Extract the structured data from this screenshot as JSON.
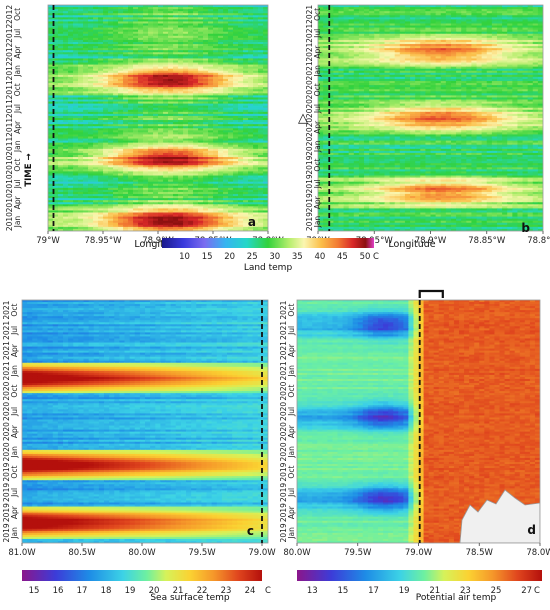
{
  "figure": {
    "time_arrow_label": "TIME →",
    "triangle_marker": "△"
  },
  "chart_data": [
    {
      "type": "heatmap",
      "panel": "a",
      "xlabel": "Longitude",
      "x_ticks": [
        "79°W",
        "78.95°W",
        "78.9°W",
        "78.85°W",
        "78.8°W"
      ],
      "x_tick_values": [
        -79.0,
        -78.95,
        -78.9,
        -78.85,
        -78.8
      ],
      "xlim": [
        -79.0,
        -78.8
      ],
      "y_ticks": [
        "2010 Jan",
        "2010 Apr",
        "2010 Jul",
        "2010 Oct",
        "2011 Jan",
        "2011 Apr",
        "2011 Jul",
        "2011 Oct",
        "2012 Jan",
        "2012 Apr",
        "2012 Jul",
        "2012 Oct"
      ],
      "dashed_line_x": -78.995,
      "colorbar": {
        "label": "Land temp",
        "unit": "C",
        "ticks": [
          10,
          15,
          20,
          25,
          30,
          35,
          40,
          45,
          50
        ],
        "range": [
          5,
          52
        ]
      }
    },
    {
      "type": "heatmap",
      "panel": "b",
      "xlabel": "Longitude",
      "x_ticks": [
        "79°W",
        "78.95°W",
        "78.9°W",
        "78.85°W",
        "78.8°W"
      ],
      "x_tick_values": [
        -79.0,
        -78.95,
        -78.9,
        -78.85,
        -78.8
      ],
      "xlim": [
        -79.0,
        -78.8
      ],
      "y_ticks": [
        "2019 Jan",
        "2019 Apr",
        "2019 Jul",
        "2019 Oct",
        "2020 Jan",
        "2020 Apr",
        "2020 Jul",
        "2020 Oct",
        "2021 Jan",
        "2021 Apr",
        "2021 Jul",
        "2021 Oct"
      ],
      "dashed_line_x": -78.99
    },
    {
      "type": "heatmap",
      "panel": "c",
      "x_ticks": [
        "81.0W",
        "80.5W",
        "80.0W",
        "79.5W",
        "79.0W"
      ],
      "x_tick_values": [
        -81.0,
        -80.5,
        -80.0,
        -79.5,
        -79.0
      ],
      "xlim": [
        -81.0,
        -78.95
      ],
      "y_ticks": [
        "2019 Jan",
        "2019 Apr",
        "2019 Jul",
        "2019 Oct",
        "2020 Jan",
        "2020 Apr",
        "2020 Jul",
        "2020 Oct",
        "2021 Jan",
        "2021 Apr",
        "2021 Jul",
        "2021 Oct"
      ],
      "dashed_line_x": -79.0,
      "colorbar": {
        "label": "Sea surface temp",
        "unit": "C",
        "ticks": [
          15,
          16,
          17,
          18,
          19,
          20,
          21,
          22,
          23,
          24
        ],
        "range": [
          14.5,
          24.5
        ]
      }
    },
    {
      "type": "heatmap",
      "panel": "d",
      "x_ticks": [
        "80.0W",
        "79.5W",
        "79.0W",
        "78.5W",
        "78.0W"
      ],
      "x_tick_values": [
        -80.0,
        -79.5,
        -79.0,
        -78.5,
        -78.0
      ],
      "xlim": [
        -80.0,
        -78.0
      ],
      "y_ticks": [
        "2019 Jan",
        "2019 Apr",
        "2019 Jul",
        "2019 Oct",
        "2020 Jan",
        "2020 Apr",
        "2020 Jul",
        "2020 Oct",
        "2021 Jan",
        "2021 Apr",
        "2021 Jul",
        "2021 Oct"
      ],
      "dashed_line_x": -78.99,
      "bracket_x_range": [
        -78.99,
        -78.8
      ],
      "colorbar": {
        "label": "Potential air temp",
        "unit": "C",
        "ticks": [
          13,
          15,
          17,
          19,
          21,
          23,
          25,
          27
        ],
        "range": [
          12,
          28
        ]
      }
    }
  ]
}
